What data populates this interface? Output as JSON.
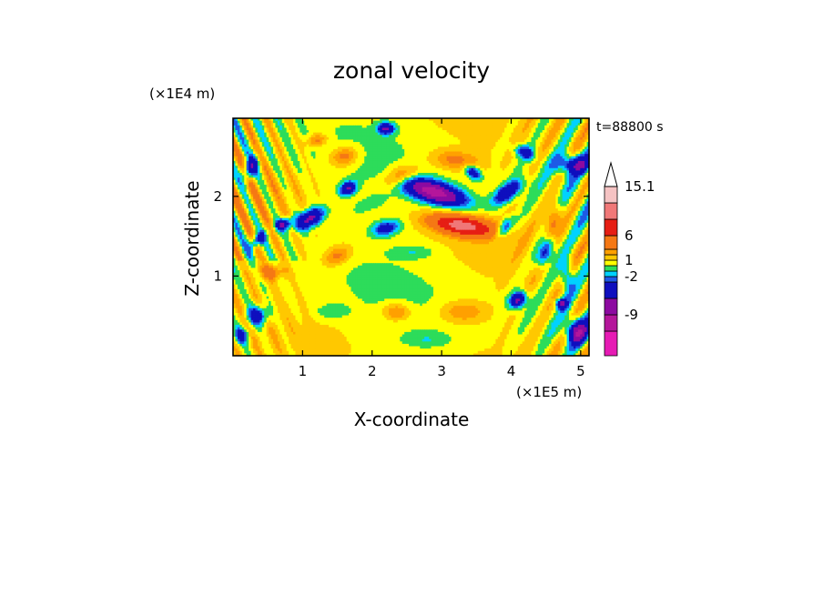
{
  "chart_data": {
    "type": "heatmap",
    "title": "zonal velocity",
    "time_label": "t=88800 s",
    "xlabel": "X-coordinate",
    "ylabel": "Z-coordinate",
    "x_unit": "(×1E5 m)",
    "y_unit": "(×1E4 m)",
    "xlim": [
      0,
      5.12
    ],
    "ylim": [
      0,
      2.98
    ],
    "x_ticks": [
      {
        "value": 1,
        "label": "1"
      },
      {
        "value": 2,
        "label": "2"
      },
      {
        "value": 3,
        "label": "3"
      },
      {
        "value": 4,
        "label": "4"
      },
      {
        "value": 5,
        "label": "5"
      }
    ],
    "y_ticks": [
      {
        "value": 1,
        "label": "1"
      },
      {
        "value": 2,
        "label": "2"
      }
    ],
    "grid": false,
    "colorbar": {
      "position": "right",
      "levels": [
        {
          "lo": -15.1,
          "hi": -12,
          "color": "#e61bb4"
        },
        {
          "lo": -12,
          "hi": -9,
          "color": "#b4169b"
        },
        {
          "lo": -9,
          "hi": -6,
          "color": "#8c0aa0"
        },
        {
          "lo": -6,
          "hi": -3,
          "color": "#0f0fbe"
        },
        {
          "lo": -3,
          "hi": -2,
          "color": "#1e5ae6"
        },
        {
          "lo": -2,
          "hi": -1,
          "color": "#00d2ff"
        },
        {
          "lo": -1,
          "hi": 0,
          "color": "#2ddc5a"
        },
        {
          "lo": 0,
          "hi": 1,
          "color": "#ffff00"
        },
        {
          "lo": 1,
          "hi": 2,
          "color": "#ffc800"
        },
        {
          "lo": 2,
          "hi": 3,
          "color": "#ffa000"
        },
        {
          "lo": 3,
          "hi": 6,
          "color": "#f57814"
        },
        {
          "lo": 6,
          "hi": 9,
          "color": "#e61e14"
        },
        {
          "lo": 9,
          "hi": 12,
          "color": "#f07878"
        },
        {
          "lo": 12,
          "hi": 15.1,
          "color": "#f5c3c3"
        }
      ],
      "labels": [
        {
          "value": 15.1,
          "label": "15.1"
        },
        {
          "value": 6,
          "label": "6"
        },
        {
          "value": 1,
          "label": "1"
        },
        {
          "value": -2,
          "label": "-2"
        },
        {
          "value": -9,
          "label": "-9"
        }
      ],
      "extend": "max"
    },
    "features": [
      {
        "x": 2.9,
        "z": 2.05,
        "a": 0.45,
        "b": 0.13,
        "rot": -14,
        "v": -11
      },
      {
        "x": 3.3,
        "z": 1.63,
        "a": 0.45,
        "b": 0.12,
        "rot": -8,
        "v": 9.5
      },
      {
        "x": 1.1,
        "z": 1.72,
        "a": 0.22,
        "b": 0.11,
        "rot": 25,
        "v": -8
      },
      {
        "x": 0.72,
        "z": 1.65,
        "a": 0.12,
        "b": 0.07,
        "rot": 20,
        "v": -7
      },
      {
        "x": 0.35,
        "z": 1.45,
        "a": 0.14,
        "b": 0.07,
        "rot": 40,
        "v": -5
      },
      {
        "x": 1.65,
        "z": 2.1,
        "a": 0.12,
        "b": 0.08,
        "rot": 20,
        "v": -7
      },
      {
        "x": 2.2,
        "z": 1.6,
        "a": 0.2,
        "b": 0.09,
        "rot": 10,
        "v": -5
      },
      {
        "x": 3.2,
        "z": 2.45,
        "a": 0.35,
        "b": 0.12,
        "rot": -5,
        "v": 3
      },
      {
        "x": 2.4,
        "z": 2.25,
        "a": 0.25,
        "b": 0.12,
        "rot": 15,
        "v": 4
      },
      {
        "x": 1.6,
        "z": 2.5,
        "a": 0.2,
        "b": 0.12,
        "rot": 10,
        "v": 3.5
      },
      {
        "x": 2.2,
        "z": 2.85,
        "a": 0.12,
        "b": 0.07,
        "rot": 0,
        "v": -7
      },
      {
        "x": 3.95,
        "z": 2.05,
        "a": 0.25,
        "b": 0.1,
        "rot": 30,
        "v": -6
      },
      {
        "x": 3.45,
        "z": 2.3,
        "a": 0.12,
        "b": 0.07,
        "rot": -30,
        "v": -6
      },
      {
        "x": 4.9,
        "z": 2.4,
        "a": 0.25,
        "b": 0.12,
        "rot": 0,
        "v": -6
      },
      {
        "x": 4.5,
        "z": 1.3,
        "a": 0.2,
        "b": 0.1,
        "rot": 60,
        "v": -6
      },
      {
        "x": 4.1,
        "z": 0.7,
        "a": 0.12,
        "b": 0.09,
        "rot": 30,
        "v": -8
      },
      {
        "x": 4.72,
        "z": 0.65,
        "a": 0.08,
        "b": 0.06,
        "rot": 0,
        "v": -7
      },
      {
        "x": 4.6,
        "z": 1.7,
        "a": 0.25,
        "b": 0.1,
        "rot": 70,
        "v": 4
      },
      {
        "x": 0.55,
        "z": 1.05,
        "a": 0.22,
        "b": 0.1,
        "rot": 0,
        "v": 3
      },
      {
        "x": 1.5,
        "z": 1.25,
        "a": 0.2,
        "b": 0.11,
        "rot": 20,
        "v": 3
      },
      {
        "x": 1.4,
        "z": 0.55,
        "a": 0.25,
        "b": 0.1,
        "rot": 0,
        "v": -1.5
      },
      {
        "x": 2.35,
        "z": 0.55,
        "a": 0.2,
        "b": 0.11,
        "rot": 0,
        "v": 3
      },
      {
        "x": 3.3,
        "z": 0.55,
        "a": 0.35,
        "b": 0.14,
        "rot": 0,
        "v": 2.5
      },
      {
        "x": 2.8,
        "z": 0.2,
        "a": 0.35,
        "b": 0.1,
        "rot": 0,
        "v": -1.5
      },
      {
        "x": 0.35,
        "z": 0.5,
        "a": 0.15,
        "b": 0.12,
        "rot": 0,
        "v": -6
      },
      {
        "x": 0.12,
        "z": 0.25,
        "a": 0.1,
        "b": 0.1,
        "rot": 0,
        "v": -5
      },
      {
        "x": 4.95,
        "z": 0.3,
        "a": 0.15,
        "b": 0.15,
        "rot": 0,
        "v": -8
      },
      {
        "x": 4.8,
        "z": 1.0,
        "a": 0.1,
        "b": 0.2,
        "rot": 0,
        "v": -4
      },
      {
        "x": 0.25,
        "z": 2.35,
        "a": 0.16,
        "b": 0.09,
        "rot": 60,
        "v": -6
      },
      {
        "x": 4.2,
        "z": 2.55,
        "a": 0.15,
        "b": 0.08,
        "rot": -20,
        "v": -5
      },
      {
        "x": 1.2,
        "z": 2.7,
        "a": 0.16,
        "b": 0.08,
        "rot": 10,
        "v": 3
      },
      {
        "x": 3.9,
        "z": 1.6,
        "a": 0.16,
        "b": 0.08,
        "rot": 45,
        "v": -5
      },
      {
        "x": 1.95,
        "z": 1.9,
        "a": 0.25,
        "b": 0.08,
        "rot": 20,
        "v": -1.5
      },
      {
        "x": 2.6,
        "z": 1.3,
        "a": 0.3,
        "b": 0.08,
        "rot": 0,
        "v": -1.5
      }
    ]
  }
}
